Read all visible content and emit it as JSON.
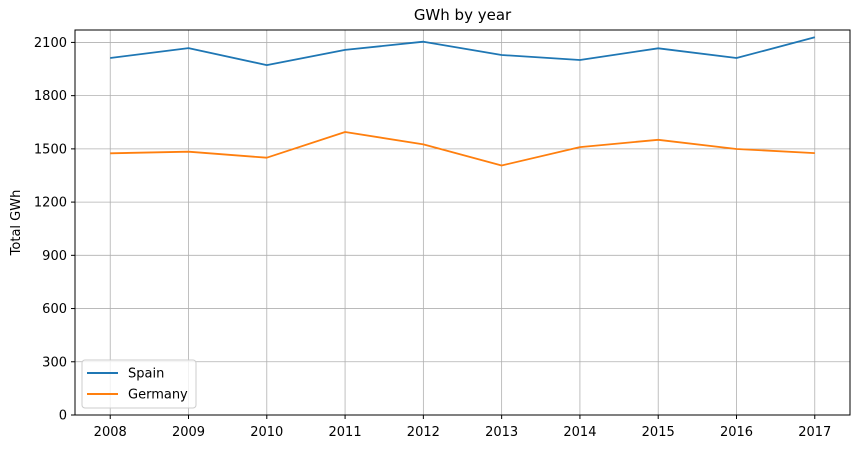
{
  "chart_data": {
    "type": "line",
    "title": "GWh by year",
    "xlabel": "",
    "ylabel": "Total GWh",
    "x": [
      2008,
      2009,
      2010,
      2011,
      2012,
      2013,
      2014,
      2015,
      2016,
      2017
    ],
    "x_tick_labels": [
      "2008",
      "2009",
      "2010",
      "2011",
      "2012",
      "2013",
      "2014",
      "2015",
      "2016",
      "2017"
    ],
    "y_ticks": [
      0,
      300,
      600,
      900,
      1200,
      1500,
      1800,
      2100
    ],
    "y_tick_labels": [
      "0",
      "300",
      "600",
      "900",
      "1200",
      "1500",
      "1800",
      "2100"
    ],
    "ylim": [
      0,
      2170
    ],
    "xlim": [
      2007.55,
      2017.45
    ],
    "grid": true,
    "legend_position": "lower-left",
    "series": [
      {
        "name": "Spain",
        "color": "#1f77b4",
        "values": [
          2012,
          2068,
          1972,
          2058,
          2104,
          2029,
          2001,
          2067,
          2012,
          2129
        ]
      },
      {
        "name": "Germany",
        "color": "#ff7f0e",
        "values": [
          1475,
          1484,
          1450,
          1595,
          1525,
          1406,
          1510,
          1551,
          1499,
          1476
        ]
      }
    ]
  }
}
